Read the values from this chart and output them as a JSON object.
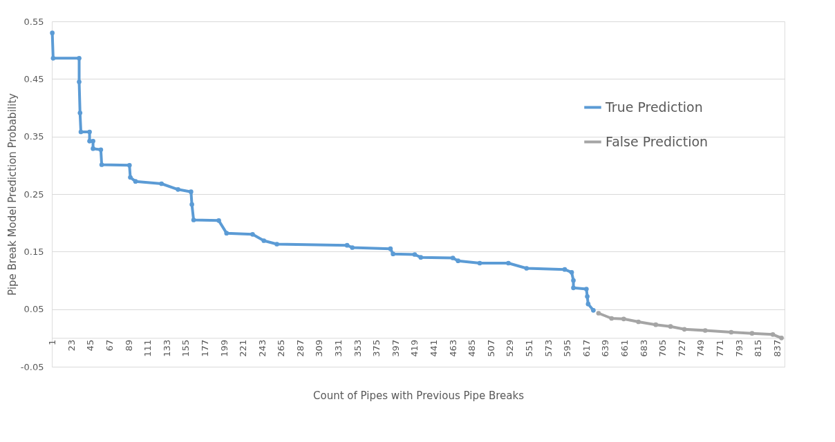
{
  "chart_data": {
    "type": "line",
    "xlabel": "Count of Pipes with Previous Pipe Breaks",
    "ylabel": "Pipe Break Model Prediction Probability",
    "xlim": [
      0.5,
      845.5
    ],
    "xticks": [
      1,
      23,
      45,
      67,
      89,
      111,
      133,
      155,
      177,
      199,
      221,
      243,
      265,
      287,
      309,
      331,
      353,
      375,
      397,
      419,
      441,
      463,
      485,
      507,
      529,
      551,
      573,
      595,
      617,
      639,
      661,
      683,
      705,
      727,
      749,
      771,
      793,
      815,
      837
    ],
    "ylim": [
      -0.05,
      0.55
    ],
    "yticks": [
      -0.05,
      0.05,
      0.15,
      0.25,
      0.35,
      0.45,
      0.55
    ],
    "grid": "y",
    "legend": "top right",
    "marker": "circle",
    "line_style": "solid",
    "series": [
      {
        "name": "True Prediction",
        "color": "#5b9bd5",
        "x": [
          1,
          2,
          32,
          32,
          33,
          34,
          44,
          44,
          48,
          48,
          57,
          58,
          90,
          91,
          97,
          127,
          146,
          161,
          162,
          164,
          193,
          202,
          232,
          245,
          260,
          341,
          347,
          391,
          394,
          419,
          426,
          463,
          469,
          494,
          527,
          548,
          592,
          600,
          602,
          602,
          617,
          618,
          619,
          625
        ],
        "values": [
          0.53,
          0.486,
          0.486,
          0.445,
          0.391,
          0.358,
          0.358,
          0.342,
          0.342,
          0.329,
          0.327,
          0.301,
          0.3,
          0.279,
          0.272,
          0.268,
          0.258,
          0.254,
          0.232,
          0.205,
          0.204,
          0.182,
          0.18,
          0.169,
          0.163,
          0.161,
          0.157,
          0.155,
          0.146,
          0.145,
          0.14,
          0.139,
          0.134,
          0.13,
          0.13,
          0.121,
          0.119,
          0.114,
          0.1,
          0.087,
          0.085,
          0.072,
          0.059,
          0.048
        ]
      },
      {
        "name": "False Prediction",
        "color": "#a5a5a5",
        "x": [
          631,
          646,
          660,
          677,
          697,
          714,
          730,
          754,
          784,
          808,
          832,
          842
        ],
        "values": [
          0.043,
          0.034,
          0.033,
          0.028,
          0.023,
          0.02,
          0.015,
          0.013,
          0.01,
          0.008,
          0.006,
          0.0
        ]
      }
    ]
  }
}
